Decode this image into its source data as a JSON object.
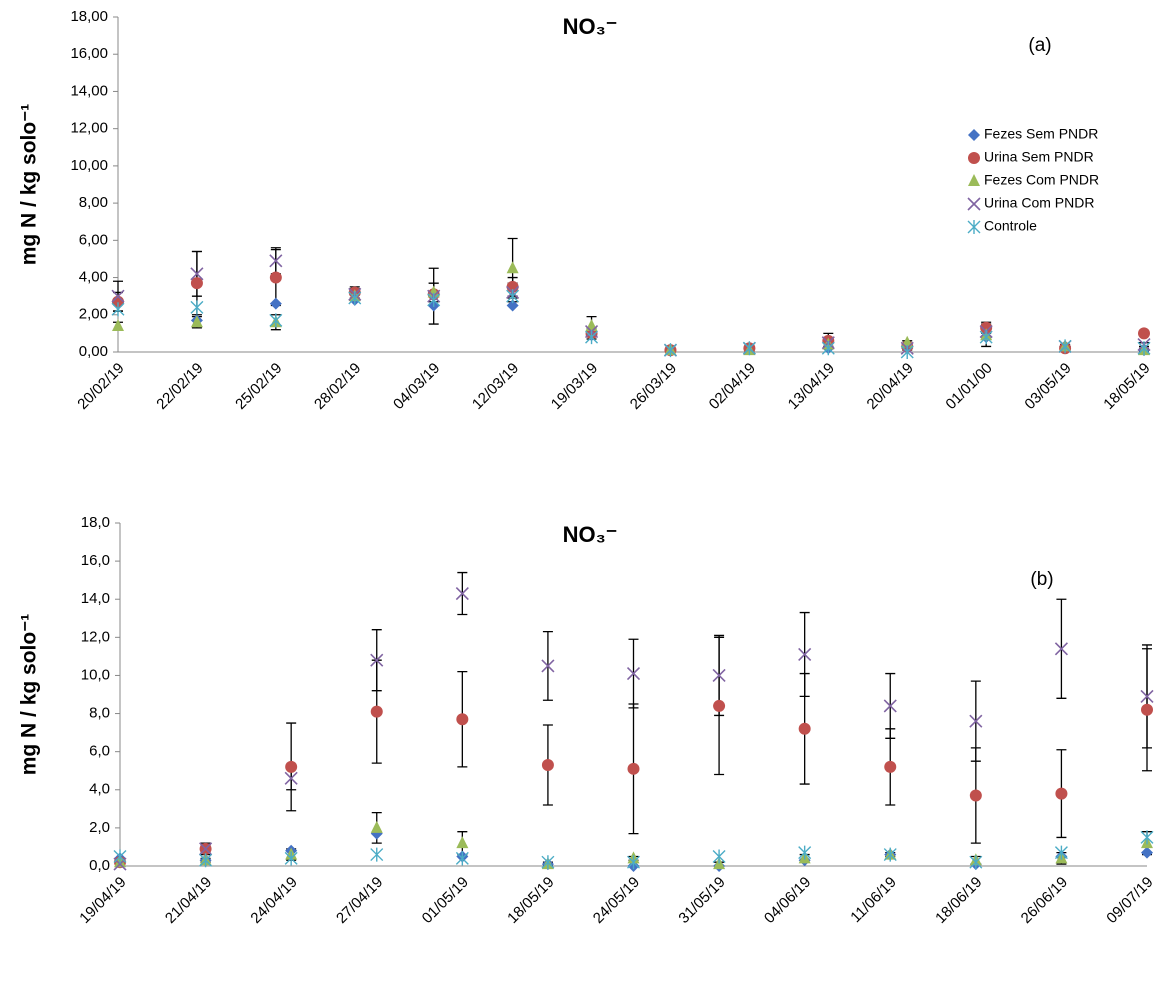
{
  "chart_data": [
    {
      "type": "scatter",
      "title": "NO₃⁻",
      "annotation": "(a)",
      "y_label": "mg N / kg solo⁻¹",
      "legend": "upper right",
      "categories": [
        "20/02/19",
        "22/02/19",
        "25/02/19",
        "28/02/19",
        "04/03/19",
        "12/03/19",
        "19/03/19",
        "26/03/19",
        "02/04/19",
        "13/04/19",
        "20/04/19",
        "01/01/00",
        "03/05/19",
        "18/05/19"
      ],
      "ylim": [
        0,
        18
      ],
      "yticks": [
        {
          "value": 0,
          "label": "0,00"
        },
        {
          "value": 2,
          "label": "2,00"
        },
        {
          "value": 4,
          "label": "4,00"
        },
        {
          "value": 6,
          "label": "6,00"
        },
        {
          "value": 8,
          "label": "8,00"
        },
        {
          "value": 10,
          "label": "10,00"
        },
        {
          "value": 12,
          "label": "12,00"
        },
        {
          "value": 14,
          "label": "14,00"
        },
        {
          "value": 16,
          "label": "16,00"
        },
        {
          "value": 18,
          "label": "18,00"
        }
      ],
      "series": [
        {
          "name": "Fezes Sem PNDR",
          "color": "#4472c4",
          "marker": "diamond",
          "values": [
            2.7,
            1.7,
            2.6,
            2.8,
            2.5,
            2.5,
            0.9,
            0.1,
            0.2,
            0.2,
            0.2,
            0.8,
            0.3,
            0.1
          ]
        },
        {
          "name": "Urina Sem PNDR",
          "color": "#c0504d",
          "marker": "circle",
          "values": [
            2.7,
            3.7,
            4.0,
            3.2,
            3.1,
            3.5,
            1.0,
            0.1,
            0.2,
            0.6,
            0.3,
            1.3,
            0.2,
            1.0
          ],
          "errors": [
            0.5,
            1.7,
            1.5,
            0.3,
            0.6,
            0.5,
            0.3,
            0.1,
            0.1,
            0.4,
            0.1,
            0.3,
            0.1,
            0.1
          ]
        },
        {
          "name": "Fezes Com PNDR",
          "color": "#9bbb59",
          "marker": "triangle",
          "values": [
            1.4,
            1.6,
            1.6,
            3.0,
            3.2,
            4.5,
            1.4,
            0.1,
            0.1,
            0.4,
            0.5,
            0.9,
            0.3,
            0.1
          ],
          "errors": [
            0.2,
            0.3,
            0.4,
            0.2,
            0.5,
            1.6,
            0.5,
            0.1,
            0.1,
            0.1,
            0.1,
            0.6,
            0.1,
            0.1
          ]
        },
        {
          "name": "Urina Com PNDR",
          "color": "#8064a2",
          "marker": "x",
          "values": [
            3.0,
            4.2,
            4.9,
            3.1,
            3.0,
            3.2,
            1.1,
            0.1,
            0.2,
            0.5,
            0.2,
            1.1,
            0.3,
            0.4
          ],
          "errors": [
            0.8,
            1.2,
            0.7,
            0.3,
            1.5,
            0.5,
            0.2,
            0.1,
            0.1,
            0.2,
            0.1,
            0.3,
            0.1,
            0.1
          ]
        },
        {
          "name": "Controle",
          "color": "#4bacc6",
          "marker": "star",
          "values": [
            2.3,
            2.4,
            1.7,
            2.9,
            2.8,
            3.0,
            0.8,
            0.1,
            0.2,
            0.2,
            0.0,
            0.8,
            0.3,
            0.2
          ]
        }
      ]
    },
    {
      "type": "scatter",
      "title": "NO₃⁻",
      "annotation": "(b)",
      "y_label": "mg N / kg solo⁻¹",
      "categories": [
        "19/04/19",
        "21/04/19",
        "24/04/19",
        "27/04/19",
        "01/05/19",
        "18/05/19",
        "24/05/19",
        "31/05/19",
        "04/06/19",
        "11/06/19",
        "18/06/19",
        "26/06/19",
        "09/07/19"
      ],
      "ylim": [
        0,
        18
      ],
      "yticks": [
        {
          "value": 0,
          "label": "0,0"
        },
        {
          "value": 2,
          "label": "2,0"
        },
        {
          "value": 4,
          "label": "4,0"
        },
        {
          "value": 6,
          "label": "6,0"
        },
        {
          "value": 8,
          "label": "8,0"
        },
        {
          "value": 10,
          "label": "10,0"
        },
        {
          "value": 12,
          "label": "12,0"
        },
        {
          "value": 14,
          "label": "14,0"
        },
        {
          "value": 16,
          "label": "16,0"
        },
        {
          "value": 18,
          "label": "18,0"
        }
      ],
      "series": [
        {
          "color": "#4472c4",
          "marker": "diamond",
          "values": [
            0.4,
            0.3,
            0.8,
            1.7,
            0.5,
            0.1,
            0.0,
            0.0,
            0.3,
            0.6,
            0.1,
            0.5,
            0.7
          ]
        },
        {
          "color": "#c0504d",
          "marker": "circle",
          "values": [
            0.2,
            0.9,
            5.2,
            8.1,
            7.7,
            5.3,
            5.1,
            8.4,
            7.2,
            5.2,
            3.7,
            3.8,
            8.2
          ],
          "errors": [
            0.2,
            0.3,
            2.3,
            2.7,
            2.5,
            2.1,
            3.4,
            3.6,
            2.9,
            2.0,
            2.5,
            2.3,
            3.2
          ]
        },
        {
          "color": "#9bbb59",
          "marker": "triangle",
          "values": [
            0.2,
            0.3,
            0.6,
            2.0,
            1.2,
            0.1,
            0.4,
            0.1,
            0.4,
            0.6,
            0.3,
            0.4,
            1.2
          ],
          "errors": [
            0.2,
            0.1,
            0.3,
            0.8,
            0.6,
            0.1,
            0.1,
            0.1,
            0.2,
            0.1,
            0.2,
            0.3,
            0.6
          ]
        },
        {
          "color": "#8064a2",
          "marker": "x",
          "values": [
            0.1,
            0.9,
            4.6,
            10.8,
            14.3,
            10.5,
            10.1,
            10.0,
            11.1,
            8.4,
            7.6,
            11.4,
            8.9
          ],
          "errors": [
            0.1,
            0.2,
            0.6,
            1.6,
            1.1,
            1.8,
            1.8,
            2.1,
            2.2,
            1.7,
            2.1,
            2.6,
            2.7
          ]
        },
        {
          "color": "#4bacc6",
          "marker": "star",
          "values": [
            0.5,
            0.3,
            0.4,
            0.6,
            0.4,
            0.2,
            0.2,
            0.5,
            0.7,
            0.6,
            0.2,
            0.7,
            1.5
          ]
        }
      ]
    }
  ]
}
